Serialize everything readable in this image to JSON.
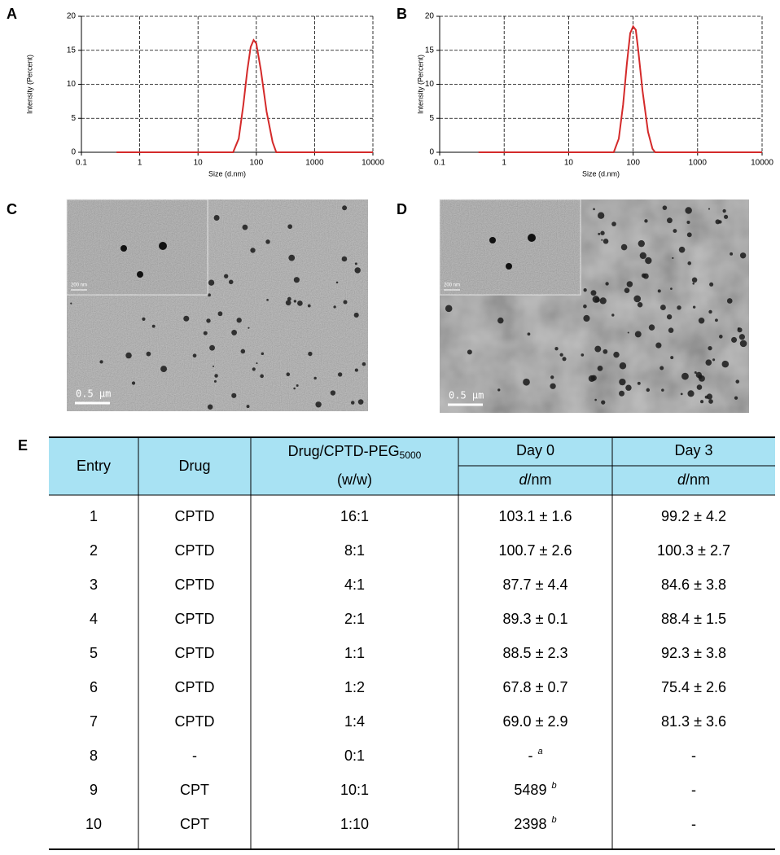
{
  "panels": [
    "A",
    "B",
    "C",
    "D",
    "E"
  ],
  "chart_data": [
    {
      "type": "line",
      "xlabel": "Size (d.nm)",
      "ylabel": "Intensity (Percent)",
      "log_x": true,
      "grid": true,
      "xlim": [
        0.1,
        10000
      ],
      "xticks": [
        0.1,
        1,
        10,
        100,
        1000,
        10000
      ],
      "ylim": [
        0,
        20
      ],
      "yticks": [
        0,
        5,
        10,
        15,
        20
      ],
      "x": [
        0.4,
        40,
        50,
        60,
        70,
        80,
        90,
        100,
        120,
        150,
        190,
        220,
        10000
      ],
      "series": [
        {
          "color": "#d42a2a",
          "values": [
            0,
            0,
            2,
            7,
            12,
            15.5,
            16.5,
            16,
            12,
            6,
            1.5,
            0,
            0
          ]
        }
      ]
    },
    {
      "type": "line",
      "xlabel": "Size (d.nm)",
      "ylabel": "Intensity (Percent)",
      "log_x": true,
      "grid": true,
      "xlim": [
        0.1,
        10000
      ],
      "xticks": [
        0.1,
        1,
        10,
        100,
        1000,
        10000
      ],
      "ylim": [
        0,
        20
      ],
      "yticks": [
        0,
        5,
        10,
        15,
        20
      ],
      "x": [
        0.4,
        50,
        60,
        70,
        80,
        90,
        100,
        110,
        120,
        140,
        170,
        200,
        220,
        10000
      ],
      "series": [
        {
          "color": "#d42a2a",
          "values": [
            0,
            0,
            2,
            7,
            13,
            17.5,
            18.5,
            18,
            15,
            9,
            3,
            0.5,
            0,
            0
          ]
        }
      ]
    }
  ],
  "images": [
    {
      "scale_bar": "0.5 μm",
      "inset_scale_bar": "200 nm"
    },
    {
      "scale_bar": "0.5 μm",
      "inset_scale_bar": "200 nm"
    }
  ],
  "table": {
    "header": {
      "entry": "Entry",
      "drug": "Drug",
      "ratio": "Drug/CPTD-PEG",
      "ratio_sub": "5000",
      "ratio_unit": "(w/w)",
      "day0": "Day 0",
      "day3": "Day 3",
      "size_var": "d",
      "size_unit": "/nm"
    },
    "rows": [
      {
        "cells": [
          "1",
          "CPTD",
          "16:1",
          "103.1 ± 1.6",
          "99.2 ± 4.2"
        ]
      },
      {
        "cells": [
          "2",
          "CPTD",
          "8:1",
          "100.7 ± 2.6",
          "100.3 ± 2.7"
        ]
      },
      {
        "cells": [
          "3",
          "CPTD",
          "4:1",
          "87.7 ± 4.4",
          "84.6 ± 3.8"
        ]
      },
      {
        "cells": [
          "4",
          "CPTD",
          "2:1",
          "89.3 ± 0.1",
          "88.4 ± 1.5"
        ]
      },
      {
        "cells": [
          "5",
          "CPTD",
          "1:1",
          "88.5 ± 2.3",
          "92.3 ± 3.8"
        ]
      },
      {
        "cells": [
          "6",
          "CPTD",
          "1:2",
          "67.8 ± 0.7",
          "75.4 ± 2.6"
        ]
      },
      {
        "cells": [
          "7",
          "CPTD",
          "1:4",
          "69.0 ± 2.9",
          "81.3 ± 3.6"
        ]
      },
      {
        "cells": [
          "8",
          "-",
          "0:1",
          "-",
          "-"
        ],
        "note": "a"
      },
      {
        "cells": [
          "9",
          "CPT",
          "10:1",
          "5489",
          "-"
        ],
        "note": "b"
      },
      {
        "cells": [
          "10",
          "CPT",
          "1:10",
          "2398",
          "-"
        ],
        "note": "b"
      }
    ]
  }
}
